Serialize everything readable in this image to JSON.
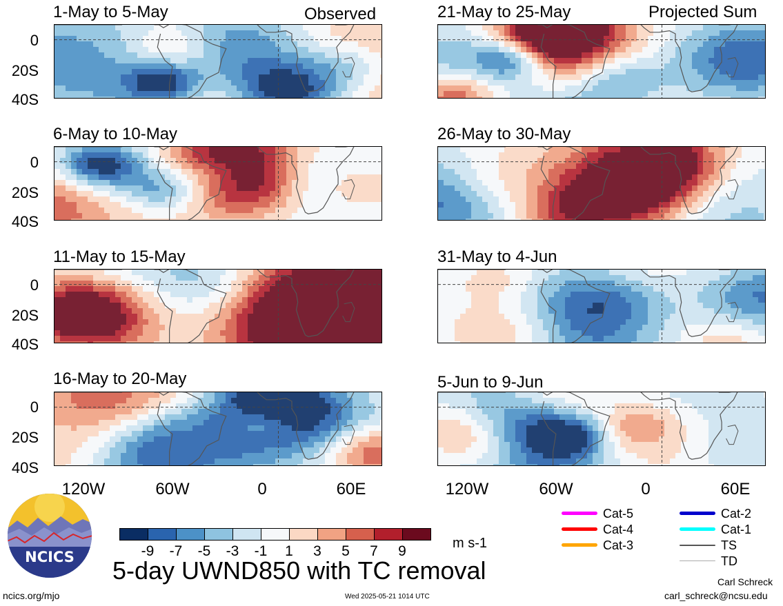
{
  "header": {
    "observed_label": "Observed",
    "projected_label": "Projected Sum"
  },
  "panels": [
    {
      "title": "1-May to 5-May",
      "column": "observed"
    },
    {
      "title": "6-May to 10-May",
      "column": "observed"
    },
    {
      "title": "11-May to 15-May",
      "column": "observed"
    },
    {
      "title": "16-May to 20-May",
      "column": "observed"
    },
    {
      "title": "21-May to 25-May",
      "column": "projected"
    },
    {
      "title": "26-May to 30-May",
      "column": "projected"
    },
    {
      "title": "31-May to 4-Jun",
      "column": "projected"
    },
    {
      "title": "5-Jun to 9-Jun",
      "column": "projected"
    }
  ],
  "axes": {
    "lat_labels": [
      "0",
      "20S",
      "40S"
    ],
    "lon_labels": [
      "120W",
      "60W",
      "0",
      "60E"
    ]
  },
  "colorbar": {
    "tick_labels": [
      "-9",
      "-7",
      "-5",
      "-3",
      "-1",
      "1",
      "3",
      "5",
      "7",
      "9"
    ],
    "unit": "m s-1",
    "colors": [
      "#0a2d63",
      "#2a64ae",
      "#4c91c7",
      "#8ec3e0",
      "#cfe5f2",
      "#f6f8fa",
      "#fbd8c4",
      "#f1a283",
      "#d6604d",
      "#b21f2c",
      "#6b0a1e"
    ]
  },
  "legend": {
    "items": [
      {
        "label": "Cat-5",
        "color": "#ff00ff"
      },
      {
        "label": "Cat-4",
        "color": "#ff0000"
      },
      {
        "label": "Cat-3",
        "color": "#ffa500"
      },
      {
        "label": "Cat-2",
        "color": "#0000cc"
      },
      {
        "label": "Cat-1",
        "color": "#00ffff"
      },
      {
        "label": "TS",
        "color": "#555555"
      },
      {
        "label": "TD",
        "color": "#aaaaaa"
      }
    ]
  },
  "logo": {
    "text": "NCICS"
  },
  "footer": {
    "main_title": "5-day UWND850 with TC removal",
    "url": "ncics.org/mjo",
    "timestamp": "Wed 2025-05-21 1014 UTC",
    "author": "Carl Schreck",
    "email": "carl_schreck@ncsu.edu"
  }
}
